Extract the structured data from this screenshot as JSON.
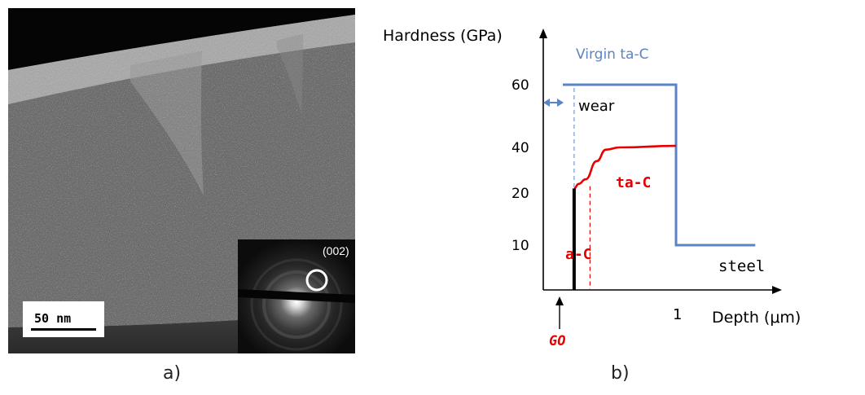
{
  "panel_a": {
    "scale_bar_label": "50 nm",
    "inset_label": "(002)"
  },
  "panel_b": {
    "labels": {
      "ylabel": "Hardness (GPa)",
      "xlabel": "Depth (μm)",
      "virgin": "Virgin ta-C",
      "wear": "wear",
      "tac": "ta-C",
      "ac": "a-C",
      "steel": "steel",
      "go": "GO"
    },
    "colors": {
      "blue": "#5b84c4",
      "red": "#e60000",
      "black": "#000000"
    }
  },
  "captions": {
    "a": "a)",
    "b": "b)"
  },
  "chart_data": {
    "type": "line",
    "title": "",
    "xlabel": "Depth (μm)",
    "ylabel": "Hardness (GPa)",
    "yticks": [
      10,
      20,
      40,
      60
    ],
    "xticks": [
      1
    ],
    "series": [
      {
        "name": "Virgin ta-C",
        "x": [
          0,
          1.0,
          1.0,
          1.7
        ],
        "y": [
          60,
          60,
          10,
          10
        ]
      },
      {
        "name": "ta-C",
        "x": [
          0.1,
          0.14,
          0.2,
          0.3,
          0.38,
          0.5,
          1.0
        ],
        "y": [
          22,
          24,
          26,
          34,
          39,
          40,
          40.5
        ]
      },
      {
        "name": "GO",
        "x": [
          0.1,
          0.1
        ],
        "y": [
          0,
          22
        ]
      }
    ],
    "annotations": [
      "wear",
      "a-C",
      "steel",
      "GO"
    ]
  }
}
